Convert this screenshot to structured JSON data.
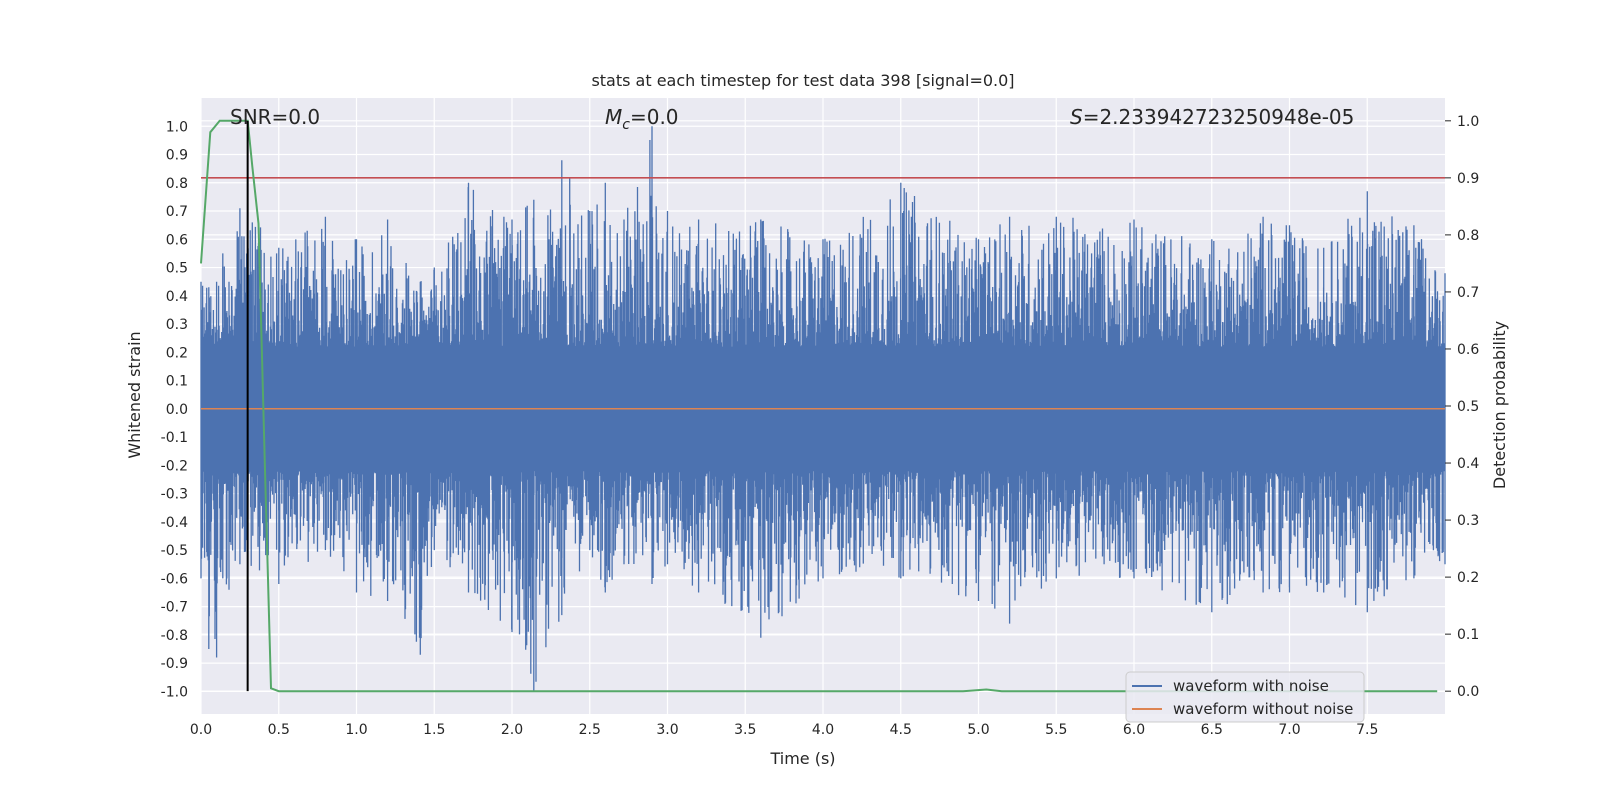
{
  "chart_data": {
    "type": "line",
    "title": "stats at each timestep for test data 398 [signal=0.0]",
    "xlabel": "Time (s)",
    "ylabel_left": "Whitened strain",
    "ylabel_right": "Detection probability",
    "xlim": [
      0.0,
      8.0
    ],
    "ylim_left": [
      -1.08,
      1.1
    ],
    "ylim_right": [
      -0.04,
      1.04
    ],
    "x_ticks": [
      "0.0",
      "0.5",
      "1.0",
      "1.5",
      "2.0",
      "2.5",
      "3.0",
      "3.5",
      "4.0",
      "4.5",
      "5.0",
      "5.5",
      "6.0",
      "6.5",
      "7.0",
      "7.5"
    ],
    "x_tick_values": [
      0.0,
      0.5,
      1.0,
      1.5,
      2.0,
      2.5,
      3.0,
      3.5,
      4.0,
      4.5,
      5.0,
      5.5,
      6.0,
      6.5,
      7.0,
      7.5
    ],
    "left_ticks": [
      "1.0",
      "0.9",
      "0.8",
      "0.7",
      "0.6",
      "0.5",
      "0.4",
      "0.3",
      "0.2",
      "0.1",
      "0.0",
      "-0.1",
      "-0.2",
      "-0.3",
      "-0.4",
      "-0.5",
      "-0.6",
      "-0.7",
      "-0.8",
      "-0.9",
      "-1.0"
    ],
    "left_tick_values": [
      1.0,
      0.9,
      0.8,
      0.7,
      0.6,
      0.5,
      0.4,
      0.3,
      0.2,
      0.1,
      0.0,
      -0.1,
      -0.2,
      -0.3,
      -0.4,
      -0.5,
      -0.6,
      -0.7,
      -0.8,
      -0.9,
      -1.0
    ],
    "right_ticks": [
      "1.0",
      "0.9",
      "0.8",
      "0.7",
      "0.6",
      "0.5",
      "0.4",
      "0.3",
      "0.2",
      "0.1",
      "0.0"
    ],
    "right_tick_values": [
      1.0,
      0.9,
      0.8,
      0.7,
      0.6,
      0.5,
      0.4,
      0.3,
      0.2,
      0.1,
      0.0
    ],
    "annotations": {
      "snr": "SNR=0.0",
      "mc_symbol": "M",
      "mc_subscript": "c",
      "mc_value": "=0.0",
      "s_symbol": "S",
      "s_value": "=2.233942723250948e-05"
    },
    "legend": [
      "waveform with noise",
      "waveform without noise"
    ],
    "threshold": {
      "axis": "right",
      "value": 0.9
    },
    "marker_line": {
      "x": 0.3,
      "from_right": 0.0,
      "to_right": 1.0
    },
    "series": [
      {
        "name": "waveform with noise",
        "axis": "left",
        "style": "noise_envelope",
        "typical_band": [
          -0.2,
          0.2
        ],
        "x": [
          0.0,
          0.05,
          0.1,
          0.14,
          0.18,
          0.25,
          0.3,
          0.5,
          0.8,
          1.0,
          1.2,
          1.41,
          1.5,
          1.72,
          2.0,
          2.14,
          2.32,
          2.5,
          2.6,
          2.72,
          2.9,
          3.0,
          3.2,
          3.6,
          4.0,
          4.5,
          5.0,
          5.2,
          5.5,
          6.0,
          6.5,
          6.83,
          7.0,
          7.22,
          7.5,
          7.8,
          8.0
        ],
        "max": [
          0.45,
          0.43,
          0.45,
          0.55,
          0.45,
          0.71,
          0.73,
          0.57,
          0.68,
          0.6,
          0.67,
          0.45,
          0.5,
          0.8,
          0.67,
          0.74,
          0.88,
          0.7,
          0.8,
          0.67,
          1.0,
          0.7,
          0.67,
          0.67,
          0.6,
          0.8,
          0.6,
          0.68,
          0.68,
          0.67,
          0.6,
          0.68,
          0.65,
          0.57,
          0.77,
          0.65,
          0.48
        ],
        "min": [
          -0.6,
          -0.85,
          -0.88,
          -0.6,
          -0.64,
          -0.55,
          -0.55,
          -0.62,
          -0.5,
          -0.65,
          -0.68,
          -0.87,
          -0.5,
          -0.65,
          -0.79,
          -1.0,
          -0.73,
          -0.5,
          -0.65,
          -0.55,
          -0.62,
          -0.55,
          -0.65,
          -0.81,
          -0.6,
          -0.6,
          -0.68,
          -0.76,
          -0.6,
          -0.6,
          -0.72,
          -0.65,
          -0.65,
          -0.65,
          -0.72,
          -0.6,
          -0.55
        ]
      },
      {
        "name": "waveform without noise",
        "axis": "left",
        "x": [
          0.0,
          8.0
        ],
        "y": [
          0.0,
          0.0
        ]
      },
      {
        "name": "detection probability",
        "axis": "right",
        "x": [
          0.0,
          0.06,
          0.12,
          0.18,
          0.24,
          0.3,
          0.33,
          0.37,
          0.41,
          0.45,
          0.5,
          1.0,
          2.0,
          3.0,
          4.0,
          4.9,
          5.05,
          5.15,
          6.0,
          7.0,
          7.95
        ],
        "y": [
          0.75,
          0.98,
          1.0,
          1.0,
          1.0,
          1.0,
          0.92,
          0.82,
          0.4,
          0.005,
          0.0,
          0.0,
          0.0,
          0.0,
          0.0,
          0.0,
          0.003,
          0.0,
          0.0,
          0.0,
          0.0
        ]
      }
    ]
  },
  "colors": {
    "background": "#eaeaf2",
    "grid": "#ffffff",
    "noise": "#4c72b0",
    "clean": "#dd8452",
    "probability": "#55a868",
    "threshold": "#c44e52",
    "marker": "#000000"
  }
}
